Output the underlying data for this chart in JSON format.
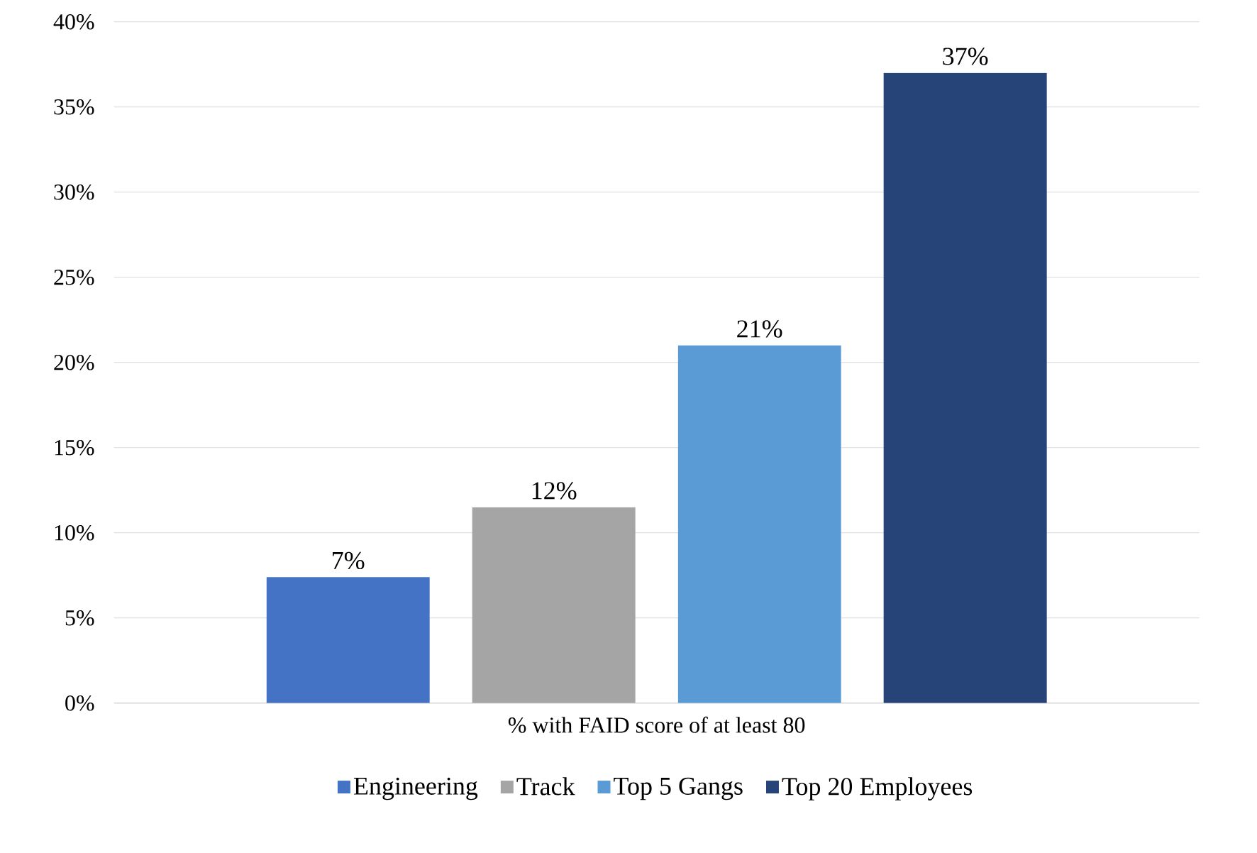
{
  "chart_data": {
    "type": "bar",
    "categories": [
      "% with FAID score of at least 80"
    ],
    "series": [
      {
        "name": "Engineering",
        "color": "#4472c4",
        "values": [
          7.4
        ],
        "value_labels": [
          "7%"
        ]
      },
      {
        "name": "Track",
        "color": "#a5a5a5",
        "values": [
          11.5
        ],
        "value_labels": [
          "12%"
        ]
      },
      {
        "name": "Top 5 Gangs",
        "color": "#5b9bd5",
        "values": [
          21
        ],
        "value_labels": [
          "21%"
        ]
      },
      {
        "name": "Top 20 Employees",
        "color": "#264478",
        "values": [
          37
        ],
        "value_labels": [
          "37%"
        ]
      }
    ],
    "ylim": [
      0,
      40
    ],
    "yticks": [
      {
        "value": 0,
        "label": "0%"
      },
      {
        "value": 5,
        "label": "5%"
      },
      {
        "value": 10,
        "label": "10%"
      },
      {
        "value": 15,
        "label": "15%"
      },
      {
        "value": 20,
        "label": "20%"
      },
      {
        "value": 25,
        "label": "25%"
      },
      {
        "value": 30,
        "label": "30%"
      },
      {
        "value": 35,
        "label": "35%"
      },
      {
        "value": 40,
        "label": "40%"
      }
    ],
    "grid": "y",
    "legend": "bottom"
  }
}
